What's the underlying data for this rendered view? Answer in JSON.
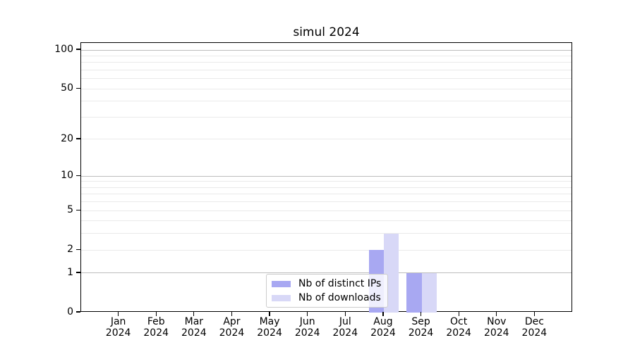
{
  "figure": {
    "background": "#ffffff",
    "axes_color": "#000000"
  },
  "chart_data": {
    "type": "bar",
    "title": "simul 2024",
    "xlabel": "",
    "ylabel": "",
    "categories": [
      "Jan 2024",
      "Feb 2024",
      "Mar 2024",
      "Apr 2024",
      "May 2024",
      "Jun 2024",
      "Jul 2024",
      "Aug 2024",
      "Sep 2024",
      "Oct 2024",
      "Nov 2024",
      "Dec 2024"
    ],
    "series": [
      {
        "name": "Nb of distinct IPs",
        "color": "#a8a8f2",
        "values": [
          0,
          0,
          0,
          0,
          0,
          0,
          0,
          2,
          1,
          0,
          0,
          0
        ]
      },
      {
        "name": "Nb of downloads",
        "color": "#d8d8f7",
        "values": [
          0,
          0,
          0,
          0,
          0,
          0,
          0,
          3,
          1,
          0,
          0,
          0
        ]
      }
    ],
    "yscale": "log1p",
    "ylim": [
      0,
      100
    ],
    "yticks": [
      0,
      1,
      2,
      5,
      10,
      20,
      50,
      100
    ],
    "grid": true,
    "gridlines": {
      "major": [
        1,
        10,
        100
      ],
      "minor": [
        2,
        3,
        4,
        5,
        6,
        7,
        8,
        9,
        20,
        30,
        40,
        50,
        60,
        70,
        80,
        90
      ],
      "major_color": "#bdbdbd",
      "minor_color": "#eaeaea"
    },
    "legend": {
      "position": "lower-center-inside",
      "items": [
        "Nb of distinct IPs",
        "Nb of downloads"
      ]
    }
  }
}
